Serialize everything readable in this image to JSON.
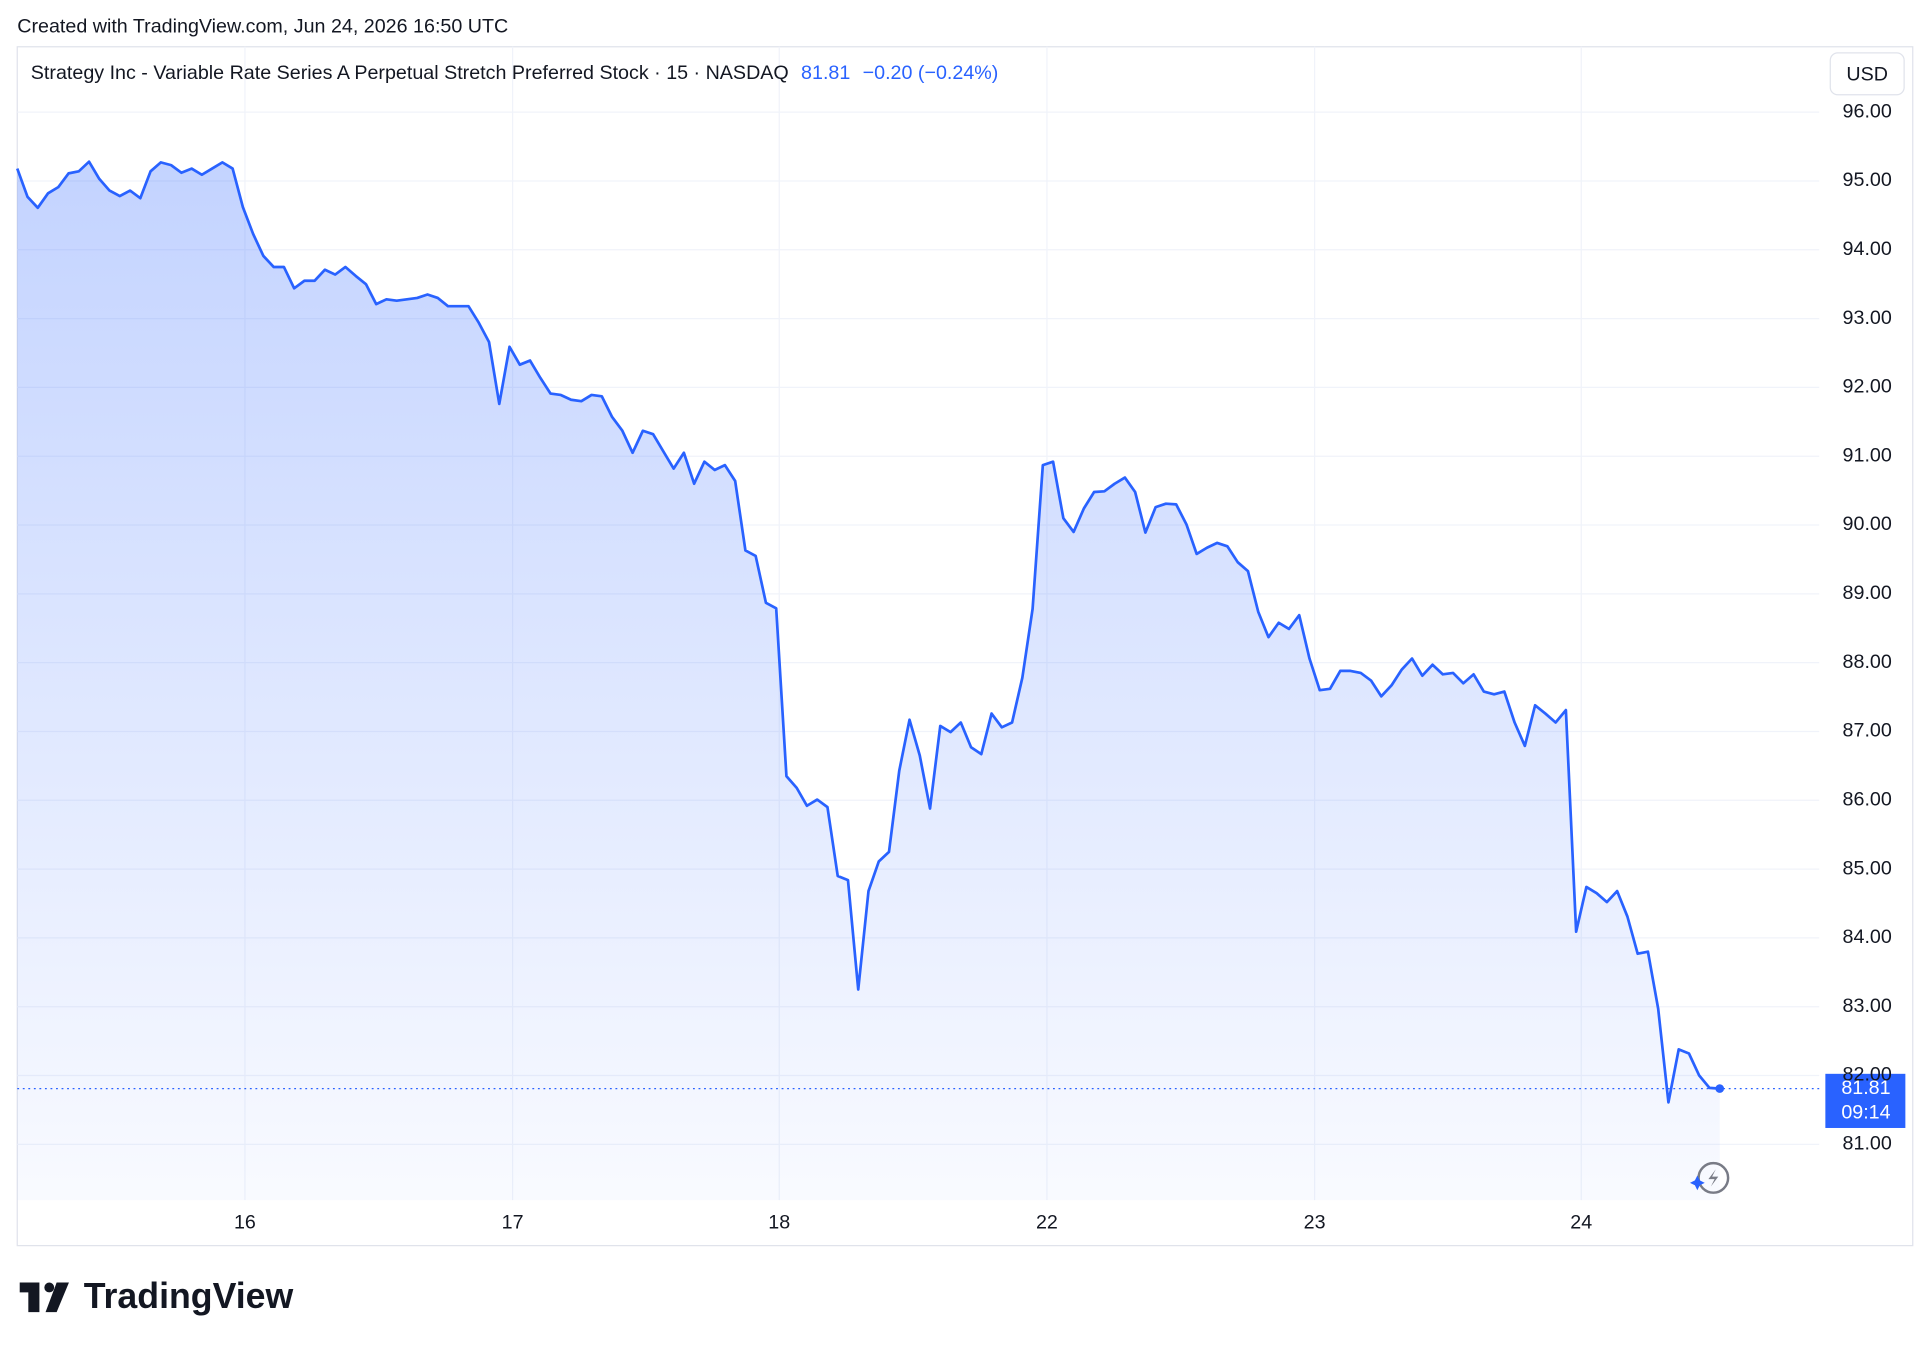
{
  "header": {
    "created": "Created with TradingView.com, Jun 24, 2026 16:50 UTC"
  },
  "chart_data": {
    "type": "area",
    "title": "Strategy Inc - Variable Rate Series A Perpetual Stretch Preferred Stock · 15 · NASDAQ",
    "last_price": 81.81,
    "change": "−0.20 (−0.24%)",
    "currency": "USD",
    "countdown": "09:14",
    "color": "#2962ff",
    "grid": true,
    "values": [
      95.18,
      94.77,
      94.61,
      94.82,
      94.91,
      95.11,
      95.14,
      95.28,
      95.03,
      94.86,
      94.78,
      94.86,
      94.75,
      95.14,
      95.27,
      95.23,
      95.12,
      95.18,
      95.09,
      95.18,
      95.27,
      95.18,
      94.62,
      94.23,
      93.91,
      93.75,
      93.75,
      93.44,
      93.55,
      93.55,
      93.71,
      93.64,
      93.75,
      93.62,
      93.5,
      93.21,
      93.28,
      93.26,
      93.28,
      93.3,
      93.35,
      93.3,
      93.18,
      93.18,
      93.18,
      92.94,
      92.66,
      91.76,
      92.59,
      92.33,
      92.39,
      92.14,
      91.91,
      91.89,
      91.82,
      91.8,
      91.89,
      91.87,
      91.57,
      91.37,
      91.05,
      91.37,
      91.32,
      91.07,
      90.82,
      91.05,
      90.6,
      90.92,
      90.8,
      90.87,
      90.64,
      89.63,
      89.55,
      88.87,
      88.79,
      86.35,
      86.18,
      85.92,
      86.01,
      85.9,
      84.9,
      84.84,
      83.25,
      84.68,
      85.11,
      85.25,
      86.43,
      87.17,
      86.65,
      85.88,
      87.08,
      86.99,
      87.13,
      86.77,
      86.67,
      87.26,
      87.06,
      87.13,
      87.78,
      88.78,
      90.87,
      90.92,
      90.1,
      89.9,
      90.24,
      90.48,
      90.49,
      90.6,
      90.69,
      90.48,
      89.89,
      90.26,
      90.31,
      90.3,
      90.01,
      89.58,
      89.67,
      89.74,
      89.69,
      89.46,
      89.33,
      88.74,
      88.37,
      88.58,
      88.49,
      88.69,
      88.06,
      87.6,
      87.62,
      87.88,
      87.88,
      87.85,
      87.74,
      87.51,
      87.67,
      87.9,
      88.06,
      87.81,
      87.97,
      87.83,
      87.85,
      87.7,
      87.83,
      87.58,
      87.54,
      87.58,
      87.13,
      86.79,
      87.38,
      87.26,
      87.13,
      87.31,
      84.09,
      84.74,
      84.65,
      84.52,
      84.68,
      84.31,
      83.77,
      83.8,
      82.97,
      81.61,
      82.38,
      82.32,
      82.0,
      81.82,
      81.81
    ],
    "xlim": [
      0,
      175.7
    ],
    "xticks": [
      {
        "value": 22.2,
        "label": "16"
      },
      {
        "value": 48.3,
        "label": "17"
      },
      {
        "value": 74.3,
        "label": "18"
      },
      {
        "value": 100.4,
        "label": "22"
      },
      {
        "value": 126.5,
        "label": "23"
      },
      {
        "value": 152.5,
        "label": "24"
      }
    ],
    "ylim": [
      80.19,
      96.95
    ],
    "yticks": [
      {
        "value": 81,
        "label": "81.00"
      },
      {
        "value": 82,
        "label": "82.00"
      },
      {
        "value": 83,
        "label": "83.00"
      },
      {
        "value": 84,
        "label": "84.00"
      },
      {
        "value": 85,
        "label": "85.00"
      },
      {
        "value": 86,
        "label": "86.00"
      },
      {
        "value": 87,
        "label": "87.00"
      },
      {
        "value": 88,
        "label": "88.00"
      },
      {
        "value": 89,
        "label": "89.00"
      },
      {
        "value": 90,
        "label": "90.00"
      },
      {
        "value": 91,
        "label": "91.00"
      },
      {
        "value": 92,
        "label": "92.00"
      },
      {
        "value": 93,
        "label": "93.00"
      },
      {
        "value": 94,
        "label": "94.00"
      },
      {
        "value": 95,
        "label": "95.00"
      },
      {
        "value": 96,
        "label": "96.00"
      }
    ]
  },
  "footer": {
    "logo": "TradingView"
  }
}
